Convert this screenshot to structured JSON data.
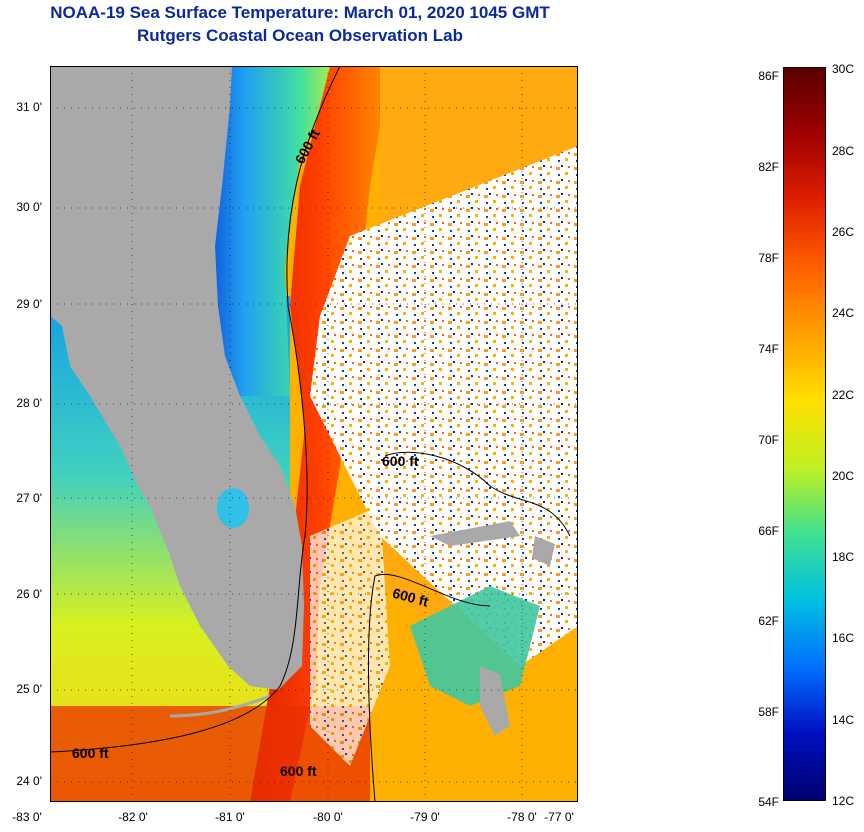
{
  "title": "NOAA-19 Sea Surface Temperature:  March 01, 2020 1045 GMT",
  "subtitle": "Rutgers Coastal Ocean Observation Lab",
  "lat_ticks": [
    "31 0'",
    "30 0'",
    "29 0'",
    "28 0'",
    "27 0'",
    "26 0'",
    "25 0'",
    "24 0'"
  ],
  "lon_ticks": [
    "-83 0'",
    "-82 0'",
    "-81 0'",
    "-80 0'",
    "-79 0'",
    "-78 0'",
    "-77 0'"
  ],
  "contour_label": "600 ft",
  "colorbar": {
    "fahrenheit": [
      "86F",
      "82F",
      "78F",
      "74F",
      "70F",
      "66F",
      "62F",
      "58F",
      "54F"
    ],
    "celsius": [
      "30C",
      "28C",
      "26C",
      "24C",
      "22C",
      "20C",
      "18C",
      "16C",
      "14C",
      "12C"
    ],
    "colors": [
      "#5a0000",
      "#a00000",
      "#e02000",
      "#ff6000",
      "#ffa000",
      "#ffe000",
      "#c0f020",
      "#40e090",
      "#00c0e0",
      "#0070ff",
      "#0010c0",
      "#000070"
    ]
  },
  "land_color": "#a9a9a9"
}
